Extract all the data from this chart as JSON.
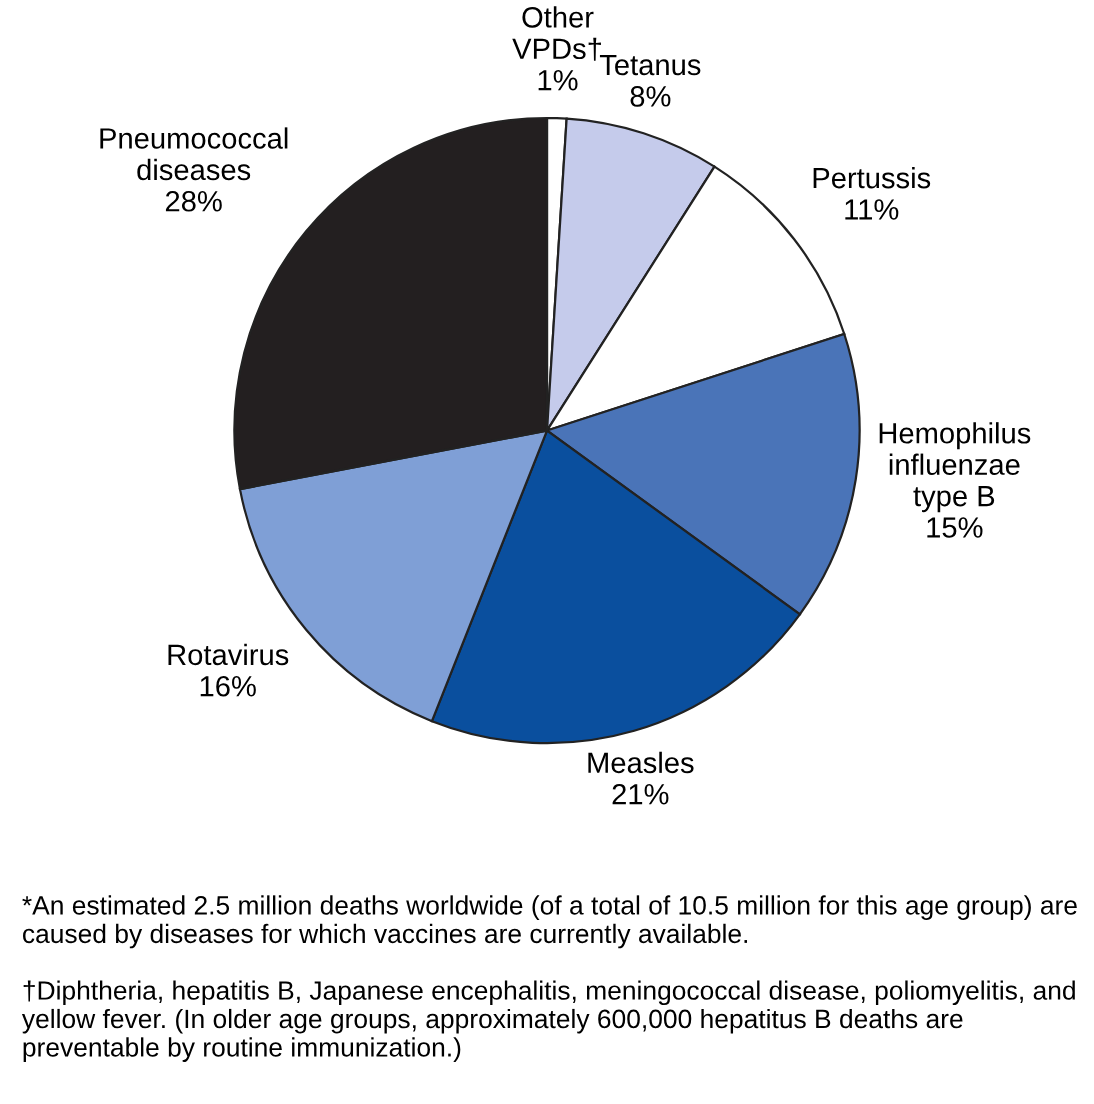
{
  "chart_data": {
    "type": "pie",
    "categories": [
      "Other\nVPDs†",
      "Tetanus",
      "Pertussis",
      "Hemophilus\ninfluenzae\ntype B",
      "Measles",
      "Rotavirus",
      "Pneumococcal\ndiseases"
    ],
    "values": [
      1,
      8,
      11,
      15,
      21,
      16,
      28
    ],
    "colors": [
      "#ffffff",
      "#c5cbeb",
      "#ffffff",
      "#4a74b8",
      "#0a4f9e",
      "#7f9fd6",
      "#231f20"
    ],
    "value_labels": [
      "1%",
      "8%",
      "11%",
      "15%",
      "21%",
      "16%",
      "28%"
    ],
    "annotations": [
      "*An estimated 2.5 million deaths worldwide (of a total of 10.5 million for this age group) are caused by diseases for which vaccines are currently available.",
      "†Diphtheria, hepatitis B, Japanese encephalitis, meningococcal disease, poliomyelitis, and yellow fever. (In older age groups, approximately 600,000 hepatitus B deaths are preventable by routine immunization.)"
    ]
  }
}
